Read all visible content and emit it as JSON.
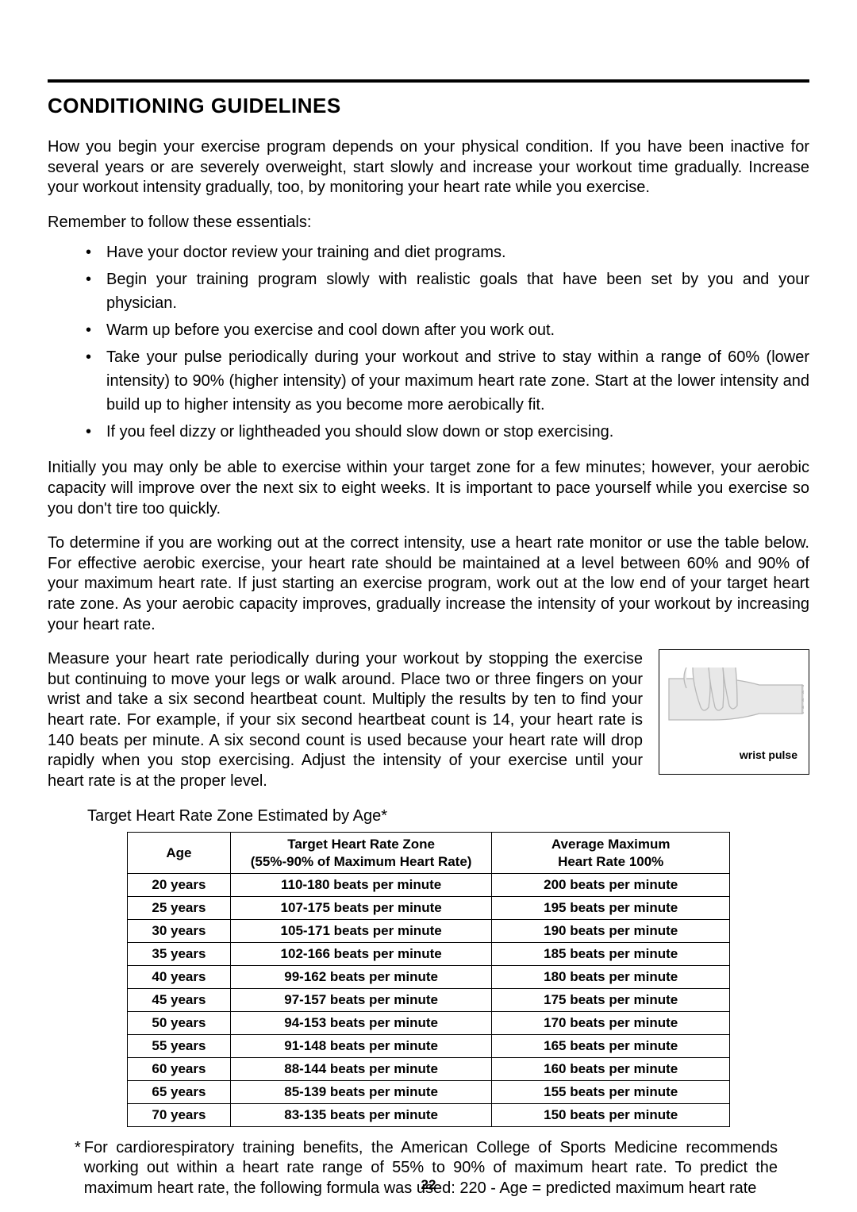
{
  "page_number": "22",
  "title": "CONDITIONING GUIDELINES",
  "intro": "How you begin your exercise program depends on your physical condition.  If you have been inactive for several years or are severely overweight, start slowly and increase your workout time gradually.  Increase your workout intensity gradually, too, by monitoring your heart rate while you exercise.",
  "remember": "Remember to follow these essentials:",
  "bullets": [
    "Have your doctor review your training and diet programs.",
    "Begin your training program slowly with realistic goals that have been set by you and your physician.",
    "Warm up before you exercise and cool down after you work out.",
    "Take your pulse periodically during your workout and strive to stay within a range of 60% (lower intensity) to 90% (higher intensity) of your maximum heart rate zone.  Start at the lower intensity and build up to higher intensity as you become more aerobically fit.",
    "If you feel dizzy or lightheaded you should slow down or stop exercising."
  ],
  "para_initially": "Initially you may only be able to exercise within your target zone for a few minutes; however, your aerobic capacity will improve over the next six to eight weeks.  It is important to pace yourself while you exercise so you don't tire too quickly.",
  "para_determine": "To determine if you are working out at the correct intensity, use a heart rate monitor or use the table below.  For effective aerobic exercise, your heart rate should be maintained at a level between 60% and 90% of your maximum heart rate.  If just starting an exercise program, work out at the low end of your target heart rate zone.  As your aerobic capacity improves, gradually increase the intensity of your workout by increasing your heart rate.",
  "para_measure": "Measure your heart rate periodically during your workout by stopping the exercise but continuing to move your legs or walk around.  Place two or three fingers on your wrist and take a six second heartbeat count.  Multiply the results by ten to find your heart rate. For example, if your six second heartbeat count is 14, your heart rate is 140 beats per minute.  A six second count is used because your heart rate will drop rapidly when you stop exercising.  Adjust the intensity of your exercise until your heart rate is at the proper level.",
  "wrist_label": "wrist pulse",
  "table_caption": "Target Heart Rate Zone Estimated by Age*",
  "table": {
    "headers": {
      "age": "Age",
      "target_line1": "Target Heart Rate Zone",
      "target_line2": "(55%-90% of Maximum Heart Rate)",
      "max_line1": "Average Maximum",
      "max_line2": "Heart Rate 100%"
    },
    "rows": [
      {
        "age": "20 years",
        "target": "110-180 beats per minute",
        "max": "200 beats per minute"
      },
      {
        "age": "25 years",
        "target": "107-175 beats per minute",
        "max": "195 beats per minute"
      },
      {
        "age": "30 years",
        "target": "105-171 beats per minute",
        "max": "190 beats per minute"
      },
      {
        "age": "35 years",
        "target": "102-166 beats per minute",
        "max": "185 beats per minute"
      },
      {
        "age": "40 years",
        "target": "99-162 beats per minute",
        "max": "180 beats per minute"
      },
      {
        "age": "45 years",
        "target": "97-157 beats per minute",
        "max": "175 beats per minute"
      },
      {
        "age": "50 years",
        "target": "94-153 beats per minute",
        "max": "170 beats per minute"
      },
      {
        "age": "55 years",
        "target": "91-148 beats per minute",
        "max": "165 beats per minute"
      },
      {
        "age": "60 years",
        "target": "88-144 beats per minute",
        "max": "160 beats per minute"
      },
      {
        "age": "65 years",
        "target": "85-139 beats per minute",
        "max": "155 beats per minute"
      },
      {
        "age": "70 years",
        "target": "83-135 beats per minute",
        "max": "150 beats per minute"
      }
    ]
  },
  "footnote": "For cardiorespiratory training benefits, the American College of Sports Medicine recommends working out within a heart rate range of 55% to 90% of maximum heart rate.  To predict the maximum heart rate, the following formula was used:  220 - Age = predicted maximum heart rate",
  "colors": {
    "text": "#000000",
    "background": "#ffffff",
    "hand_fill": "#e8e8e8",
    "hand_stroke": "#b8b8b8"
  }
}
